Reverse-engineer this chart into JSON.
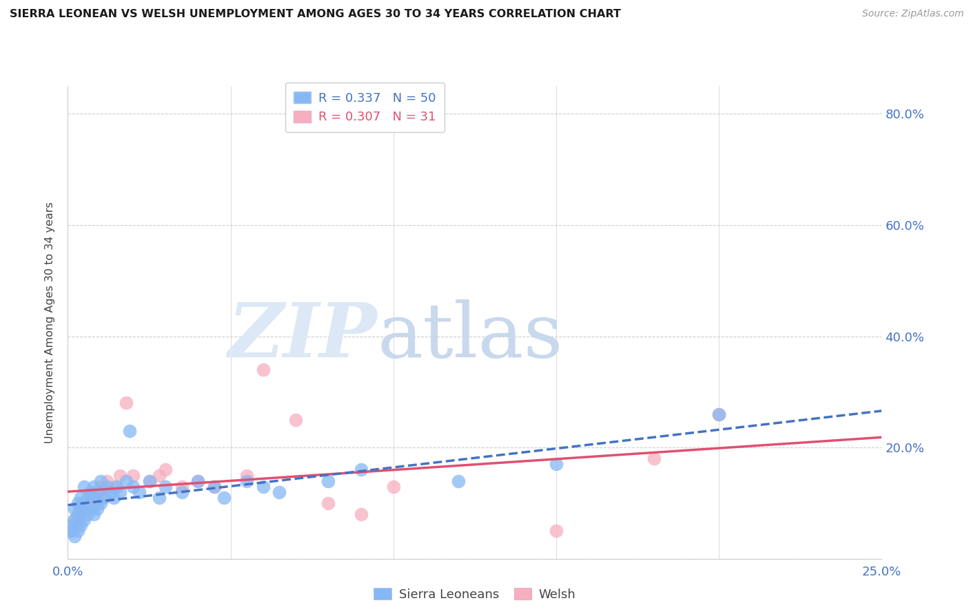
{
  "title": "SIERRA LEONEAN VS WELSH UNEMPLOYMENT AMONG AGES 30 TO 34 YEARS CORRELATION CHART",
  "source": "Source: ZipAtlas.com",
  "ylabel": "Unemployment Among Ages 30 to 34 years",
  "xlim": [
    0.0,
    0.25
  ],
  "ylim": [
    0.0,
    0.85
  ],
  "xticks": [
    0.0,
    0.05,
    0.1,
    0.15,
    0.2,
    0.25
  ],
  "yticks": [
    0.0,
    0.2,
    0.4,
    0.6,
    0.8
  ],
  "color_sl": "#85b8f5",
  "color_welsh": "#f7aec0",
  "color_sl_line": "#4472c4",
  "color_welsh_line": "#e05070",
  "background": "#ffffff",
  "grid_color": "#cccccc",
  "tick_color": "#4472c4",
  "legend_r1": "0.337",
  "legend_n1": "50",
  "legend_r2": "0.307",
  "legend_n2": "31",
  "sl_x": [
    0.001,
    0.001,
    0.002,
    0.002,
    0.002,
    0.003,
    0.003,
    0.003,
    0.004,
    0.004,
    0.004,
    0.005,
    0.005,
    0.005,
    0.006,
    0.006,
    0.007,
    0.007,
    0.008,
    0.008,
    0.008,
    0.009,
    0.009,
    0.01,
    0.01,
    0.011,
    0.012,
    0.013,
    0.014,
    0.015,
    0.016,
    0.018,
    0.019,
    0.02,
    0.022,
    0.025,
    0.028,
    0.03,
    0.035,
    0.04,
    0.045,
    0.048,
    0.055,
    0.06,
    0.065,
    0.08,
    0.09,
    0.12,
    0.15,
    0.2
  ],
  "sl_y": [
    0.05,
    0.06,
    0.04,
    0.07,
    0.09,
    0.05,
    0.08,
    0.1,
    0.06,
    0.09,
    0.11,
    0.07,
    0.1,
    0.13,
    0.08,
    0.11,
    0.09,
    0.12,
    0.08,
    0.11,
    0.13,
    0.09,
    0.12,
    0.1,
    0.14,
    0.11,
    0.13,
    0.12,
    0.11,
    0.13,
    0.12,
    0.14,
    0.23,
    0.13,
    0.12,
    0.14,
    0.11,
    0.13,
    0.12,
    0.14,
    0.13,
    0.11,
    0.14,
    0.13,
    0.12,
    0.14,
    0.16,
    0.14,
    0.17,
    0.26
  ],
  "welsh_x": [
    0.001,
    0.002,
    0.003,
    0.004,
    0.005,
    0.006,
    0.007,
    0.008,
    0.009,
    0.01,
    0.011,
    0.012,
    0.014,
    0.016,
    0.018,
    0.02,
    0.025,
    0.028,
    0.03,
    0.035,
    0.04,
    0.045,
    0.055,
    0.06,
    0.07,
    0.08,
    0.09,
    0.1,
    0.15,
    0.18,
    0.2
  ],
  "welsh_y": [
    0.05,
    0.07,
    0.06,
    0.08,
    0.1,
    0.09,
    0.11,
    0.1,
    0.12,
    0.13,
    0.11,
    0.14,
    0.13,
    0.15,
    0.28,
    0.15,
    0.14,
    0.15,
    0.16,
    0.13,
    0.14,
    0.13,
    0.15,
    0.34,
    0.25,
    0.1,
    0.08,
    0.13,
    0.05,
    0.18,
    0.26
  ]
}
